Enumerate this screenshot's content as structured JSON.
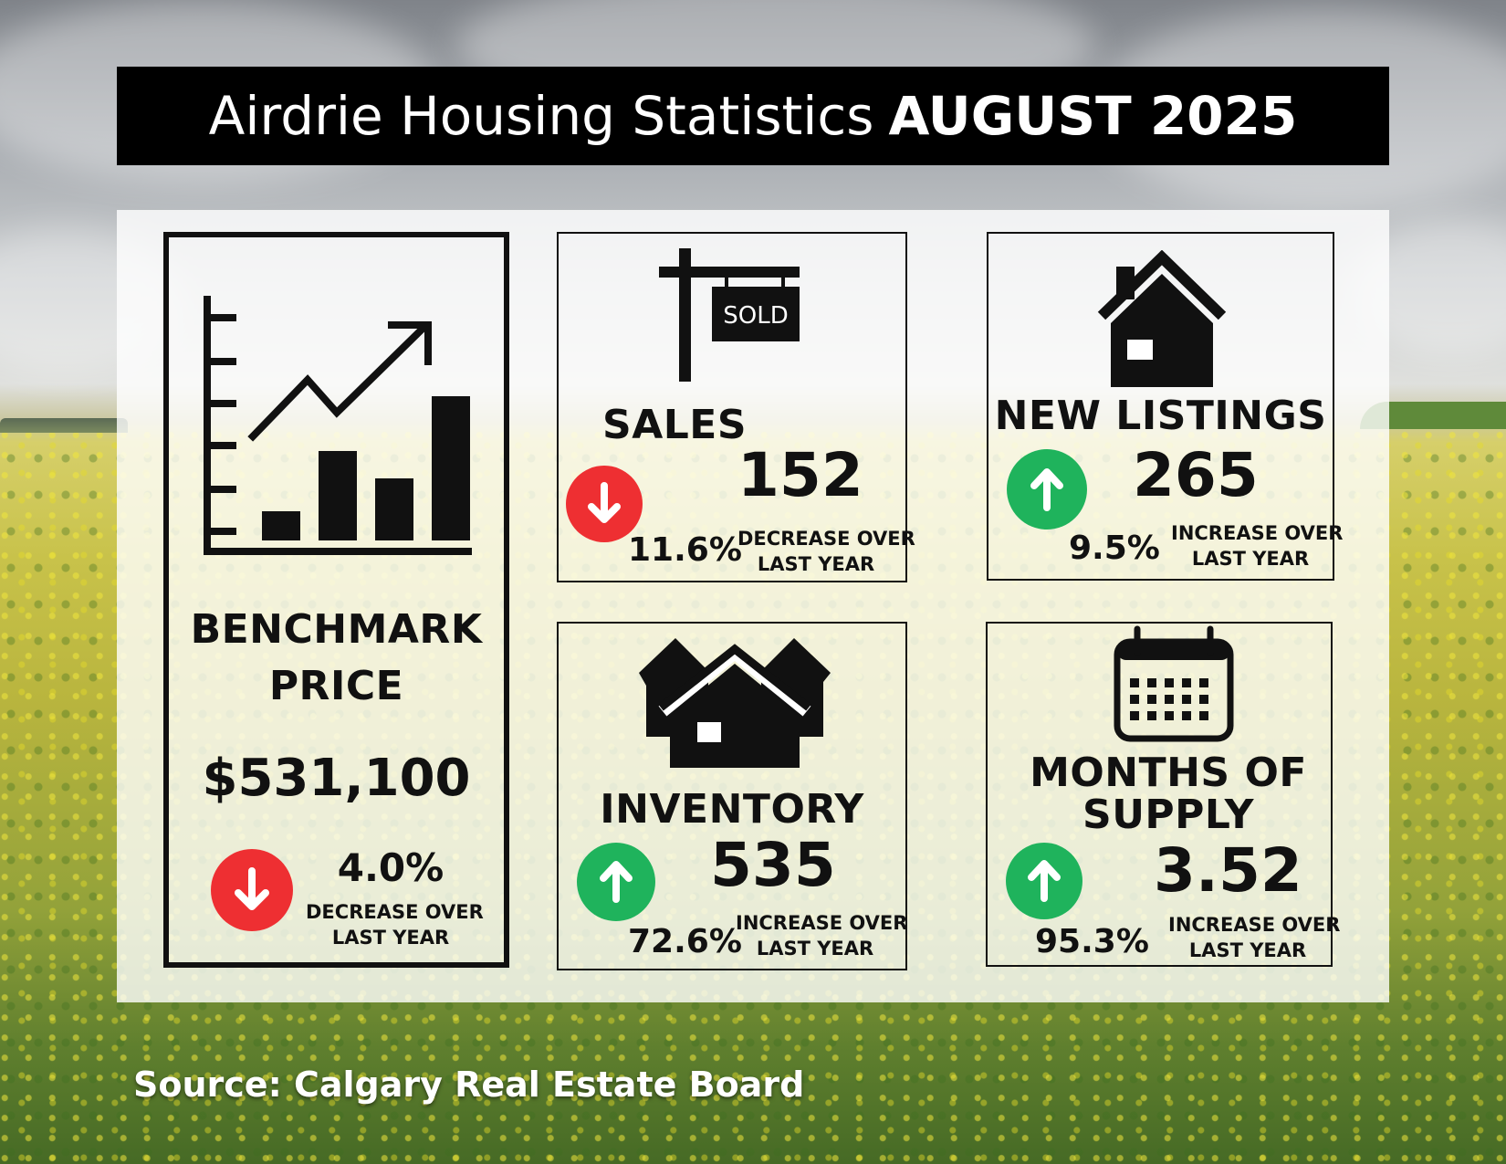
{
  "title": {
    "regular": "Airdrie Housing Statistics",
    "bold": "AUGUST 2025"
  },
  "benchmark": {
    "label_line1": "BENCHMARK",
    "label_line2": "PRICE",
    "value": "$531,100",
    "change": "4.0%",
    "direction": "down",
    "note_line1": "DECREASE OVER",
    "note_line2": "LAST YEAR",
    "icon": "growth-chart-icon"
  },
  "sales": {
    "label": "SALES",
    "value": "152",
    "change": "11.6%",
    "direction": "down",
    "note_line1": "DECREASE OVER",
    "note_line2": "LAST YEAR",
    "sign_text": "SOLD",
    "icon": "sold-sign-icon"
  },
  "new_listings": {
    "label": "NEW LISTINGS",
    "value": "265",
    "change": "9.5%",
    "direction": "up",
    "note_line1": "INCREASE OVER",
    "note_line2": "LAST YEAR",
    "icon": "house-icon"
  },
  "inventory": {
    "label": "INVENTORY",
    "value": "535",
    "change": "72.6%",
    "direction": "up",
    "note_line1": "INCREASE OVER",
    "note_line2": "LAST YEAR",
    "icon": "houses-icon"
  },
  "months_supply": {
    "label_line1": "MONTHS OF",
    "label_line2": "SUPPLY",
    "value": "3.52",
    "change": "95.3%",
    "direction": "up",
    "note_line1": "INCREASE OVER",
    "note_line2": "LAST YEAR",
    "icon": "calendar-icon"
  },
  "source": "Source: Calgary Real Estate Board",
  "colors": {
    "down": "#ee2f32",
    "up": "#1fb35c",
    "title_bg": "#000000"
  }
}
